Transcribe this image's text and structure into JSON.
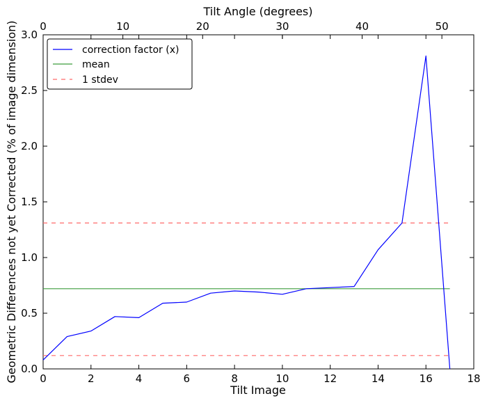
{
  "chart_data": {
    "type": "line",
    "xlabel": "Tilt Image",
    "ylabel": "Geometric Differences not yet Corrected (% of image dimension)",
    "x2label": "Tilt Angle (degrees)",
    "xlim": [
      0,
      18
    ],
    "ylim": [
      0,
      3.0
    ],
    "x2lim": [
      0,
      54
    ],
    "x_ticks": [
      "0",
      "2",
      "4",
      "6",
      "8",
      "10",
      "12",
      "14",
      "16",
      "18"
    ],
    "y_ticks": [
      "0.0",
      "0.5",
      "1.0",
      "1.5",
      "2.0",
      "2.5",
      "3.0"
    ],
    "x2_ticks": [
      "0",
      "10",
      "20",
      "30",
      "40",
      "50"
    ],
    "grid": false,
    "legend_position": "top-left",
    "series": [
      {
        "name": "correction factor (x)",
        "style": "solid",
        "color": "#0000ff",
        "x": [
          0,
          1,
          2,
          3,
          4,
          5,
          6,
          7,
          8,
          9,
          10,
          11,
          12,
          13,
          14,
          15,
          16,
          17
        ],
        "y": [
          0.08,
          0.29,
          0.34,
          0.47,
          0.46,
          0.59,
          0.6,
          0.68,
          0.7,
          0.69,
          0.67,
          0.72,
          0.73,
          0.74,
          1.07,
          1.31,
          2.81,
          0.0
        ]
      },
      {
        "name": "mean",
        "style": "solid",
        "color": "#3c9c3c",
        "x": [
          0,
          17
        ],
        "y": [
          0.72,
          0.72
        ]
      },
      {
        "name": "1 stdev",
        "style": "dashed",
        "color": "#ff6a6a",
        "x": [
          0,
          17
        ],
        "y": [
          1.31,
          1.31
        ]
      },
      {
        "name": "",
        "style": "dashed",
        "color": "#ff6a6a",
        "x": [
          0,
          17
        ],
        "y": [
          0.12,
          0.12
        ]
      }
    ]
  }
}
